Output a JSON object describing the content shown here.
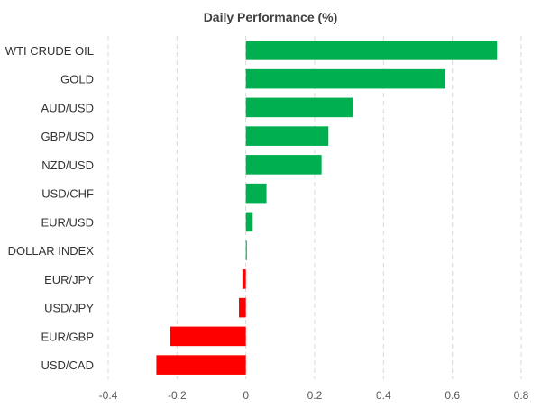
{
  "chart_data": {
    "type": "bar",
    "orientation": "horizontal",
    "title": "Daily Performance (%)",
    "categories": [
      "WTI CRUDE OIL",
      "GOLD",
      "AUD/USD",
      "GBP/USD",
      "NZD/USD",
      "USD/CHF",
      "EUR/USD",
      "DOLLAR INDEX",
      "EUR/JPY",
      "USD/JPY",
      "EUR/GBP",
      "USD/CAD"
    ],
    "values": [
      0.73,
      0.58,
      0.31,
      0.24,
      0.22,
      0.06,
      0.02,
      0.003,
      -0.01,
      -0.02,
      -0.22,
      -0.26
    ],
    "xlim": [
      -0.4,
      0.8
    ],
    "xticks": [
      "-0.4",
      "-0.2",
      "0",
      "0.2",
      "0.4",
      "0.6",
      "0.8"
    ],
    "xtick_values": [
      -0.4,
      -0.2,
      0,
      0.2,
      0.4,
      0.6,
      0.8
    ],
    "grid": "vertical dashed",
    "colors": {
      "positive": "#00b050",
      "negative": "#ff0000"
    }
  }
}
